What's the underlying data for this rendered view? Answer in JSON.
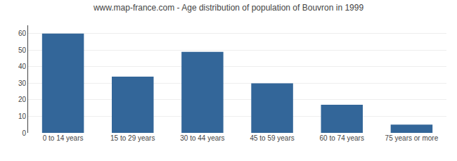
{
  "chart_data": {
    "type": "bar",
    "title": "www.map-france.com - Age distribution of population of Bouvron in 1999",
    "categories": [
      "0 to 14 years",
      "15 to 29 years",
      "30 to 44 years",
      "45 to 59 years",
      "60 to 74 years",
      "75 years or more"
    ],
    "values": [
      60,
      34,
      49,
      30,
      17,
      5
    ],
    "color": "#336699",
    "ylim": [
      0,
      65
    ],
    "yticks": [
      0,
      10,
      20,
      30,
      40,
      50,
      60
    ],
    "grid": true
  }
}
